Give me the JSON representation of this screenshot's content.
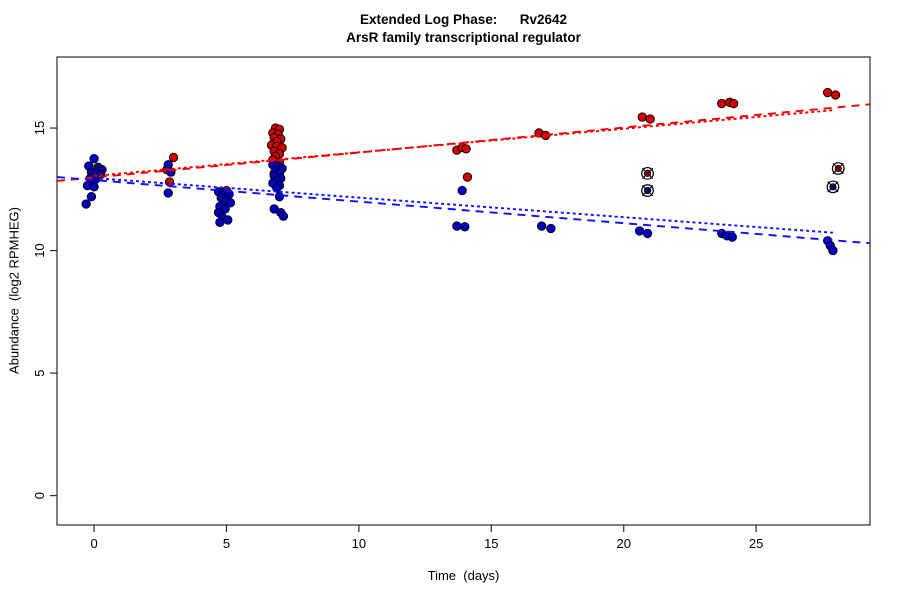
{
  "title": {
    "line1": "Extended Log Phase:      Rv2642",
    "line2": "ArsR family transcriptional regulator"
  },
  "chart_data": {
    "type": "scatter",
    "xlabel": "Time  (days)",
    "ylabel": "Abundance  (log2 RPMHEG)",
    "xlim": [
      -1.4,
      29.3
    ],
    "ylim": [
      -1.2,
      17.9
    ],
    "xticks": [
      0,
      5,
      10,
      15,
      20,
      25
    ],
    "yticks": [
      0,
      5,
      10,
      15
    ],
    "grid": false,
    "legend": "none",
    "colors": {
      "red_point": "#d40000",
      "blue_point": "#0000c4",
      "red_line": "#f40000",
      "blue_line": "#0f0fff",
      "point_stroke": "#000000",
      "axis": "#2b2b2b",
      "tick_text": "#000000"
    },
    "series": [
      {
        "name": "red-points",
        "color_key": "red_point",
        "points": [
          [
            0.1,
            13.05
          ],
          [
            -0.1,
            12.9
          ],
          [
            0.2,
            13.2
          ],
          [
            3.0,
            13.8
          ],
          [
            2.75,
            13.3
          ],
          [
            2.85,
            12.8
          ],
          [
            5.0,
            12.45
          ],
          [
            6.85,
            15.0
          ],
          [
            7.0,
            14.95
          ],
          [
            6.75,
            14.8
          ],
          [
            6.95,
            14.75
          ],
          [
            6.8,
            14.6
          ],
          [
            7.05,
            14.55
          ],
          [
            6.9,
            14.45
          ],
          [
            6.7,
            14.3
          ],
          [
            6.9,
            14.25
          ],
          [
            7.1,
            14.2
          ],
          [
            6.8,
            14.05
          ],
          [
            7.0,
            13.95
          ],
          [
            6.85,
            13.85
          ],
          [
            6.75,
            13.7
          ],
          [
            7.0,
            13.6
          ],
          [
            6.9,
            13.45
          ],
          [
            7.05,
            13.3
          ],
          [
            6.8,
            13.15
          ],
          [
            13.7,
            14.1
          ],
          [
            13.9,
            14.2
          ],
          [
            14.05,
            14.15
          ],
          [
            14.1,
            13.0
          ],
          [
            16.8,
            14.8
          ],
          [
            17.05,
            14.7
          ],
          [
            20.7,
            15.45
          ],
          [
            21.0,
            15.37
          ],
          [
            23.7,
            16.0
          ],
          [
            24.0,
            16.05
          ],
          [
            24.15,
            16.0
          ],
          [
            27.7,
            16.45
          ],
          [
            28.0,
            16.35
          ]
        ]
      },
      {
        "name": "blue-points",
        "color_key": "blue_point",
        "points": [
          [
            0.0,
            13.75
          ],
          [
            -0.2,
            13.45
          ],
          [
            0.15,
            13.4
          ],
          [
            0.3,
            13.3
          ],
          [
            -0.1,
            13.2
          ],
          [
            0.1,
            13.15
          ],
          [
            0.25,
            13.1
          ],
          [
            -0.15,
            12.95
          ],
          [
            0.05,
            12.9
          ],
          [
            -0.25,
            12.65
          ],
          [
            0.0,
            12.6
          ],
          [
            -0.1,
            12.2
          ],
          [
            -0.3,
            11.9
          ],
          [
            2.8,
            13.5
          ],
          [
            2.9,
            13.2
          ],
          [
            2.8,
            12.35
          ],
          [
            4.7,
            12.4
          ],
          [
            4.9,
            12.35
          ],
          [
            5.1,
            12.3
          ],
          [
            4.8,
            12.15
          ],
          [
            5.0,
            12.05
          ],
          [
            5.15,
            11.95
          ],
          [
            4.75,
            11.8
          ],
          [
            4.95,
            11.7
          ],
          [
            4.7,
            11.55
          ],
          [
            4.85,
            11.35
          ],
          [
            5.05,
            11.25
          ],
          [
            4.75,
            11.15
          ],
          [
            6.75,
            13.5
          ],
          [
            6.95,
            13.45
          ],
          [
            7.1,
            13.35
          ],
          [
            6.85,
            13.25
          ],
          [
            7.0,
            13.15
          ],
          [
            6.8,
            13.05
          ],
          [
            7.05,
            12.95
          ],
          [
            6.9,
            12.85
          ],
          [
            6.75,
            12.75
          ],
          [
            7.0,
            12.65
          ],
          [
            6.9,
            12.55
          ],
          [
            7.0,
            12.2
          ],
          [
            6.8,
            11.7
          ],
          [
            7.05,
            11.55
          ],
          [
            7.15,
            11.4
          ],
          [
            13.9,
            12.45
          ],
          [
            13.7,
            11.0
          ],
          [
            14.0,
            10.97
          ],
          [
            16.9,
            11.0
          ],
          [
            17.25,
            10.9
          ],
          [
            20.6,
            10.8
          ],
          [
            20.9,
            10.7
          ],
          [
            23.7,
            10.7
          ],
          [
            23.9,
            10.6
          ],
          [
            24.1,
            10.55
          ],
          [
            27.7,
            10.4
          ],
          [
            27.8,
            10.2
          ],
          [
            27.9,
            10.0
          ]
        ]
      }
    ],
    "flagged_points": [
      {
        "name": "flagged-red-day21",
        "color_key": "red_point",
        "x": 20.9,
        "y": 13.15
      },
      {
        "name": "flagged-blue-day21",
        "color_key": "blue_point",
        "x": 20.9,
        "y": 12.45
      },
      {
        "name": "flagged-red-day28",
        "color_key": "red_point",
        "x": 28.1,
        "y": 13.35
      },
      {
        "name": "flagged-blue-day28",
        "color_key": "blue_point",
        "x": 27.9,
        "y": 12.6
      }
    ],
    "open_circle_marks": [
      {
        "name": "open-circle-day0",
        "x": 0.15,
        "y": 13.2
      }
    ],
    "fit_lines": [
      {
        "name": "red-fit-dashed",
        "style": "dashed",
        "color_key": "red_line",
        "x1": -1.4,
        "y1": 12.84,
        "x2": 29.3,
        "y2": 15.97
      },
      {
        "name": "red-fit-dotted",
        "style": "dotted",
        "color_key": "red_line",
        "x1": 0.0,
        "y1": 13.05,
        "x2": 27.9,
        "y2": 15.73
      },
      {
        "name": "blue-fit-dashed",
        "style": "dashed",
        "color_key": "blue_line",
        "x1": -1.4,
        "y1": 13.0,
        "x2": 29.3,
        "y2": 10.3
      },
      {
        "name": "blue-fit-dotted",
        "style": "dotted",
        "color_key": "blue_line",
        "x1": 0.0,
        "y1": 12.96,
        "x2": 27.9,
        "y2": 10.73
      }
    ]
  }
}
